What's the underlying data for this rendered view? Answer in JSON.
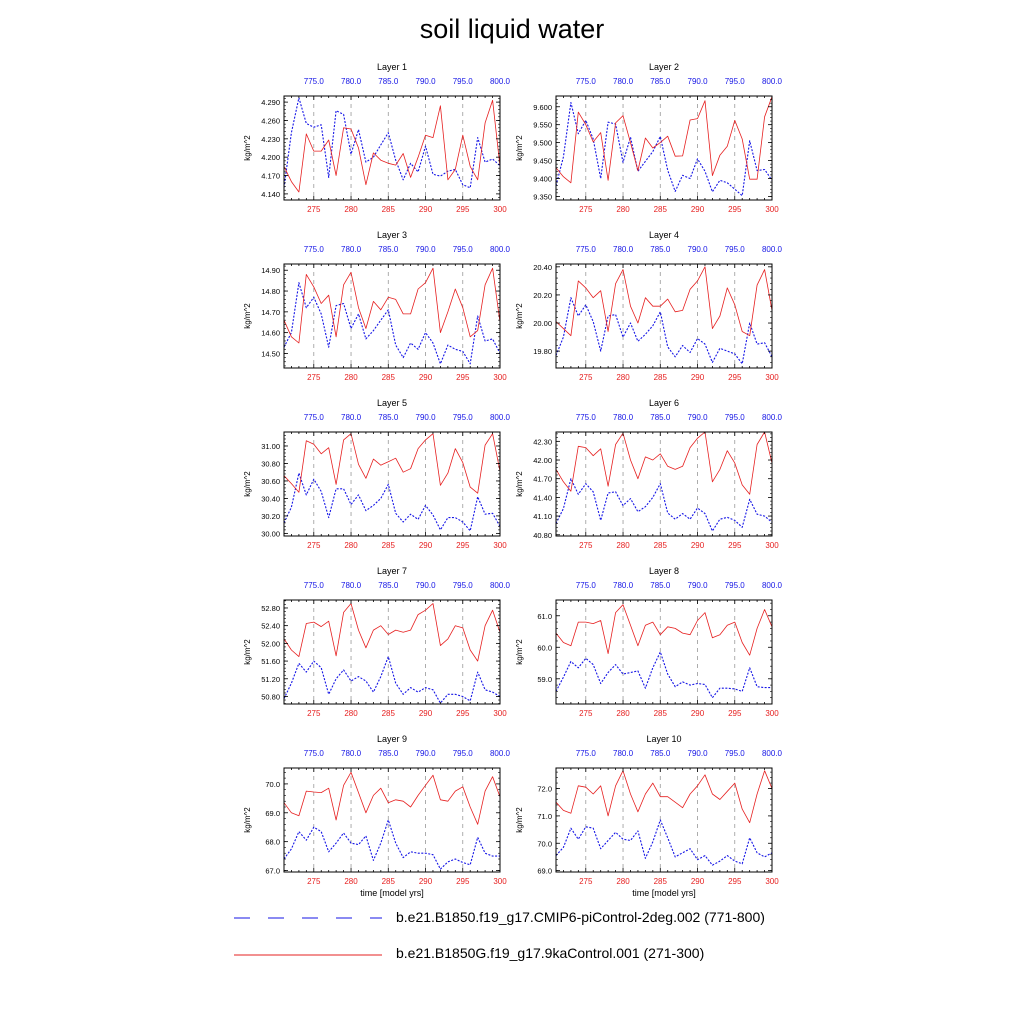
{
  "title": "soil liquid water",
  "colors": {
    "series_a": "#1515e6",
    "series_b": "#e62020",
    "grid": "#999999"
  },
  "chart_data": {
    "type": "line",
    "xlabel": "time [model yrs]",
    "ylabel": "kg/m^2",
    "bottom_axis": {
      "range": [
        271,
        300
      ],
      "ticks": [
        275,
        280,
        285,
        290,
        295,
        300
      ],
      "tick_labels": [
        "275",
        "280",
        "285",
        "290",
        "295",
        "300"
      ]
    },
    "top_axis": {
      "range": [
        771,
        800
      ],
      "ticks": [
        775,
        780,
        785,
        790,
        795,
        800
      ],
      "tick_labels": [
        "775.0",
        "780.0",
        "785.0",
        "790.0",
        "795.0",
        "800.0"
      ]
    },
    "vertical_gridlines_at": [
      275,
      280,
      285,
      290,
      295
    ],
    "legend": [
      {
        "name": "b.e21.B1850.f19_g17.CMIP6-piControl-2deg.002 (771-800)",
        "style": "dashed",
        "color": "#1515e6",
        "years": "771-800"
      },
      {
        "name": "b.e21.B1850G.f19_g17.9kaControl.001 (271-300)",
        "style": "solid",
        "color": "#e62020",
        "years": "271-300"
      }
    ],
    "panels": [
      {
        "title": "Layer 1",
        "ylim": [
          4.13,
          4.3
        ],
        "yticks": [
          4.14,
          4.17,
          4.2,
          4.23,
          4.26,
          4.29
        ],
        "ytick_labels": [
          "4.140",
          "4.170",
          "4.200",
          "4.230",
          "4.260",
          "4.290"
        ],
        "series": [
          {
            "values": [
              4.15,
              4.24,
              4.297,
              4.255,
              4.249,
              4.253,
              4.167,
              4.276,
              4.27,
              4.205,
              4.245,
              4.192,
              4.2,
              4.22,
              4.24,
              4.195,
              4.163,
              4.19,
              4.176,
              4.218,
              4.172,
              4.169,
              4.177,
              4.18,
              4.155,
              4.15,
              4.232,
              4.192,
              4.197,
              4.186
            ]
          },
          {
            "values": [
              4.185,
              4.16,
              4.143,
              4.238,
              4.21,
              4.21,
              4.228,
              4.17,
              4.248,
              4.246,
              4.215,
              4.155,
              4.207,
              4.195,
              4.19,
              4.187,
              4.206,
              4.167,
              4.2,
              4.236,
              4.232,
              4.284,
              4.163,
              4.18,
              4.236,
              4.185,
              4.163,
              4.256,
              4.293,
              4.185
            ]
          }
        ]
      },
      {
        "title": "Layer 2",
        "ylim": [
          9.34,
          9.63
        ],
        "yticks": [
          9.35,
          9.4,
          9.45,
          9.5,
          9.55,
          9.6
        ],
        "ytick_labels": [
          "9.350",
          "9.400",
          "9.450",
          "9.500",
          "9.550",
          "9.600"
        ],
        "series": [
          {
            "values": [
              9.38,
              9.46,
              9.612,
              9.525,
              9.562,
              9.51,
              9.4,
              9.557,
              9.552,
              9.445,
              9.515,
              9.42,
              9.448,
              9.475,
              9.517,
              9.423,
              9.364,
              9.409,
              9.4,
              9.455,
              9.42,
              9.363,
              9.395,
              9.388,
              9.37,
              9.352,
              9.505,
              9.422,
              9.425,
              9.395
            ]
          },
          {
            "values": [
              9.43,
              9.405,
              9.388,
              9.585,
              9.55,
              9.502,
              9.528,
              9.395,
              9.555,
              9.575,
              9.5,
              9.422,
              9.513,
              9.485,
              9.5,
              9.518,
              9.462,
              9.463,
              9.563,
              9.567,
              9.617,
              9.408,
              9.465,
              9.49,
              9.562,
              9.51,
              9.398,
              9.398,
              9.572,
              9.628
            ]
          }
        ]
      },
      {
        "title": "Layer 3",
        "ylim": [
          14.43,
          14.93
        ],
        "yticks": [
          14.5,
          14.6,
          14.7,
          14.8,
          14.9
        ],
        "ytick_labels": [
          "14.50",
          "14.60",
          "14.70",
          "14.80",
          "14.90"
        ],
        "series": [
          {
            "values": [
              14.53,
              14.6,
              14.84,
              14.72,
              14.77,
              14.69,
              14.53,
              14.73,
              14.74,
              14.62,
              14.69,
              14.57,
              14.61,
              14.66,
              14.71,
              14.54,
              14.48,
              14.55,
              14.52,
              14.6,
              14.55,
              14.45,
              14.54,
              14.52,
              14.51,
              14.45,
              14.68,
              14.56,
              14.57,
              14.5
            ]
          },
          {
            "values": [
              14.66,
              14.58,
              14.55,
              14.88,
              14.82,
              14.74,
              14.78,
              14.58,
              14.83,
              14.89,
              14.72,
              14.62,
              14.75,
              14.71,
              14.77,
              14.76,
              14.69,
              14.69,
              14.81,
              14.84,
              14.91,
              14.6,
              14.7,
              14.81,
              14.72,
              14.58,
              14.61,
              14.83,
              14.91,
              14.65
            ]
          }
        ]
      },
      {
        "title": "Layer 4",
        "ylim": [
          19.68,
          20.42
        ],
        "yticks": [
          19.8,
          20.0,
          20.2,
          20.4
        ],
        "ytick_labels": [
          "19.80",
          "20.00",
          "20.20",
          "20.40"
        ],
        "series": [
          {
            "values": [
              19.77,
              19.9,
              20.18,
              20.05,
              20.13,
              20.01,
              19.8,
              20.05,
              20.06,
              19.9,
              20.0,
              19.87,
              19.92,
              19.98,
              20.08,
              19.83,
              19.76,
              19.84,
              19.79,
              19.89,
              19.85,
              19.72,
              19.82,
              19.8,
              19.78,
              19.71,
              20.0,
              19.85,
              19.86,
              19.76
            ]
          },
          {
            "values": [
              20.01,
              19.96,
              19.91,
              20.3,
              20.25,
              20.18,
              20.23,
              19.94,
              20.28,
              20.38,
              20.12,
              20.0,
              20.18,
              20.12,
              20.12,
              20.17,
              20.08,
              20.09,
              20.24,
              20.3,
              20.4,
              19.96,
              20.05,
              20.25,
              20.13,
              19.94,
              19.91,
              20.27,
              20.38,
              20.09
            ]
          }
        ]
      },
      {
        "title": "Layer 5",
        "ylim": [
          29.97,
          31.16
        ],
        "yticks": [
          30.0,
          30.2,
          30.4,
          30.6,
          30.8,
          31.0
        ],
        "ytick_labels": [
          "30.00",
          "30.20",
          "30.40",
          "30.60",
          "30.80",
          "31.00"
        ],
        "series": [
          {
            "values": [
              30.12,
              30.3,
              30.69,
              30.44,
              30.62,
              30.48,
              30.18,
              30.51,
              30.51,
              30.33,
              30.44,
              30.26,
              30.32,
              30.4,
              30.56,
              30.23,
              30.13,
              30.22,
              30.16,
              30.32,
              30.21,
              30.04,
              30.18,
              30.18,
              30.13,
              30.03,
              30.42,
              30.22,
              30.23,
              30.08
            ]
          },
          {
            "values": [
              30.66,
              30.57,
              30.47,
              31.06,
              31.02,
              30.91,
              30.98,
              30.56,
              31.07,
              31.14,
              30.79,
              30.63,
              30.85,
              30.78,
              30.82,
              30.86,
              30.7,
              30.74,
              30.97,
              31.07,
              31.14,
              30.55,
              30.69,
              30.97,
              30.81,
              30.53,
              30.46,
              31.01,
              31.14,
              30.71
            ]
          }
        ]
      },
      {
        "title": "Layer 6",
        "ylim": [
          40.78,
          42.45
        ],
        "yticks": [
          40.8,
          41.1,
          41.4,
          41.7,
          42.0,
          42.3
        ],
        "ytick_labels": [
          "40.80",
          "41.10",
          "41.40",
          "41.70",
          "42.00",
          "42.30"
        ],
        "series": [
          {
            "values": [
              40.98,
              41.22,
              41.7,
              41.45,
              41.62,
              41.49,
              41.03,
              41.47,
              41.49,
              41.27,
              41.38,
              41.17,
              41.25,
              41.4,
              41.62,
              41.15,
              41.05,
              41.14,
              41.05,
              41.23,
              41.14,
              40.86,
              41.05,
              41.08,
              41.03,
              40.92,
              41.37,
              41.13,
              41.1,
              41.0
            ]
          },
          {
            "values": [
              41.85,
              41.65,
              41.5,
              42.22,
              42.2,
              42.07,
              42.18,
              41.58,
              42.25,
              42.43,
              42.0,
              41.7,
              42.05,
              42.0,
              42.1,
              41.9,
              41.85,
              41.9,
              42.2,
              42.35,
              42.45,
              41.65,
              41.85,
              42.15,
              41.95,
              41.6,
              41.45,
              42.25,
              42.45,
              41.95
            ]
          }
        ]
      },
      {
        "title": "Layer 7",
        "ylim": [
          50.63,
          52.98
        ],
        "yticks": [
          50.8,
          51.2,
          51.6,
          52.0,
          52.4,
          52.8
        ],
        "ytick_labels": [
          "50.80",
          "51.20",
          "51.60",
          "52.00",
          "52.40",
          "52.80"
        ],
        "series": [
          {
            "values": [
              50.75,
              51.1,
              51.55,
              51.35,
              51.6,
              51.45,
              50.85,
              51.2,
              51.4,
              51.15,
              51.25,
              51.15,
              50.9,
              51.25,
              51.7,
              51.1,
              50.85,
              51.0,
              50.9,
              51.0,
              50.95,
              50.65,
              50.85,
              50.85,
              50.8,
              50.7,
              51.35,
              50.95,
              50.9,
              50.8
            ]
          },
          {
            "values": [
              52.1,
              51.85,
              51.7,
              52.45,
              52.48,
              52.38,
              52.5,
              51.72,
              52.7,
              52.9,
              52.3,
              51.9,
              52.3,
              52.4,
              52.2,
              52.3,
              52.25,
              52.3,
              52.65,
              52.75,
              52.9,
              51.95,
              52.1,
              52.4,
              52.35,
              51.85,
              51.6,
              52.4,
              52.75,
              52.25
            ]
          }
        ]
      },
      {
        "title": "Layer 8",
        "ylim": [
          58.2,
          61.5
        ],
        "yticks": [
          59.0,
          60.0,
          61.0
        ],
        "ytick_labels": [
          "59.0",
          "60.0",
          "61.0"
        ],
        "series": [
          {
            "values": [
              58.6,
              59.05,
              59.55,
              59.35,
              59.65,
              59.45,
              58.85,
              59.2,
              59.45,
              59.15,
              59.2,
              59.25,
              58.7,
              59.35,
              59.85,
              59.15,
              58.75,
              58.9,
              58.8,
              58.85,
              58.82,
              58.4,
              58.7,
              58.7,
              58.68,
              58.6,
              59.35,
              58.75,
              58.72,
              58.72
            ]
          },
          {
            "values": [
              60.45,
              60.15,
              60.05,
              60.8,
              60.8,
              60.75,
              60.85,
              59.8,
              61.1,
              61.35,
              60.7,
              60.05,
              60.7,
              60.8,
              60.4,
              60.65,
              60.6,
              60.45,
              60.4,
              60.85,
              61.1,
              60.3,
              60.4,
              60.7,
              60.8,
              60.15,
              59.75,
              60.6,
              61.2,
              60.65
            ]
          }
        ]
      },
      {
        "title": "Layer 9",
        "ylim": [
          66.95,
          70.55
        ],
        "yticks": [
          67.0,
          68.0,
          69.0,
          70.0
        ],
        "ytick_labels": [
          "67.0",
          "68.0",
          "69.0",
          "70.0"
        ],
        "series": [
          {
            "values": [
              67.4,
              67.75,
              68.35,
              68.05,
              68.5,
              68.35,
              67.65,
              67.95,
              68.3,
              67.95,
              67.9,
              68.2,
              67.35,
              67.95,
              68.75,
              67.95,
              67.45,
              67.65,
              67.6,
              67.6,
              67.55,
              67.05,
              67.3,
              67.4,
              67.28,
              67.2,
              68.15,
              67.6,
              67.5,
              67.5
            ]
          },
          {
            "values": [
              69.35,
              69.0,
              68.9,
              69.75,
              69.72,
              69.7,
              69.85,
              68.75,
              69.95,
              70.4,
              69.7,
              69.0,
              69.6,
              69.85,
              69.35,
              69.45,
              69.4,
              69.2,
              69.6,
              69.95,
              70.3,
              69.45,
              69.4,
              69.75,
              69.9,
              69.2,
              68.6,
              69.75,
              70.25,
              69.55
            ]
          }
        ]
      },
      {
        "title": "Layer 10",
        "ylim": [
          68.95,
          72.75
        ],
        "yticks": [
          69.0,
          70.0,
          71.0,
          72.0
        ],
        "ytick_labels": [
          "69.0",
          "70.0",
          "71.0",
          "72.0"
        ],
        "series": [
          {
            "values": [
              69.55,
              69.85,
              70.55,
              70.15,
              70.6,
              70.55,
              69.8,
              70.1,
              70.4,
              70.15,
              70.1,
              70.45,
              69.45,
              70.05,
              70.85,
              70.2,
              69.5,
              69.65,
              69.8,
              69.4,
              69.55,
              69.2,
              69.35,
              69.55,
              69.35,
              69.25,
              70.2,
              69.65,
              69.5,
              69.65
            ]
          },
          {
            "values": [
              71.5,
              71.2,
              71.1,
              72.1,
              72.05,
              71.8,
              72.1,
              71.0,
              72.1,
              72.65,
              71.8,
              71.15,
              71.8,
              72.2,
              71.7,
              71.7,
              71.5,
              71.3,
              71.8,
              72.1,
              72.5,
              71.8,
              71.6,
              71.9,
              72.2,
              71.25,
              70.75,
              71.8,
              72.65,
              72.0
            ]
          }
        ]
      }
    ]
  }
}
